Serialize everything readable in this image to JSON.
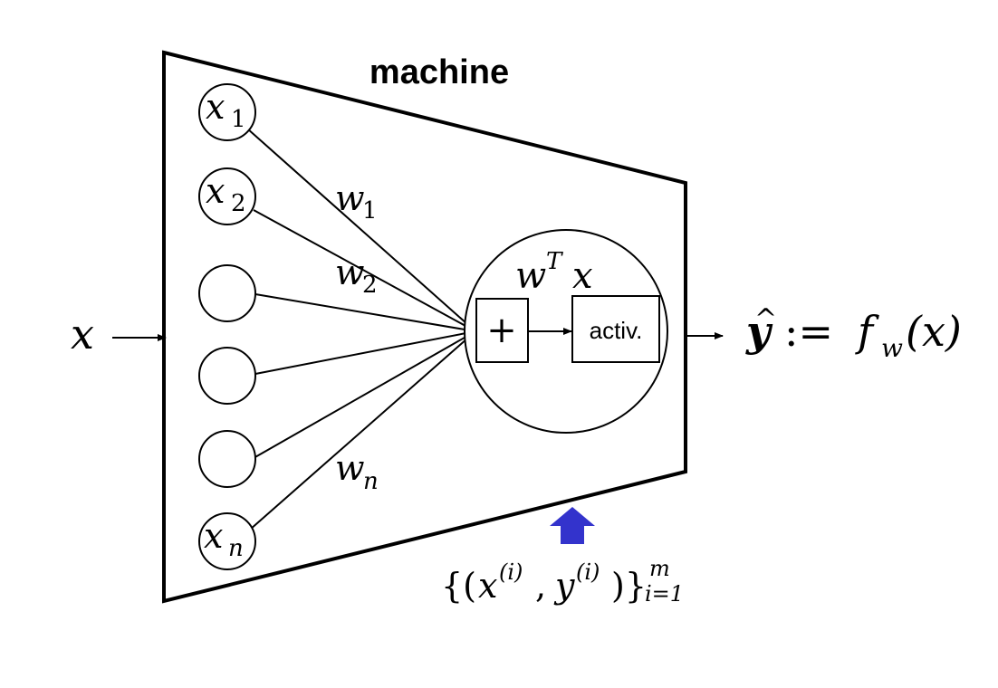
{
  "title": "machine",
  "input_label": "x",
  "inputs": [
    {
      "base": "x",
      "sub": "1"
    },
    {
      "base": "x",
      "sub": "2"
    },
    {
      "base": "",
      "sub": ""
    },
    {
      "base": "",
      "sub": ""
    },
    {
      "base": "",
      "sub": ""
    },
    {
      "base": "x",
      "sub": "n"
    }
  ],
  "weights": [
    {
      "base": "w",
      "sub": "1"
    },
    {
      "base": "w",
      "sub": "2"
    },
    {
      "base": "w",
      "sub": "n"
    }
  ],
  "neuron": {
    "label_base": "w",
    "label_sup": "T",
    "label_tail": "x",
    "sum_symbol": "+",
    "activation_label": "activ."
  },
  "output": {
    "yhat": "y",
    "hat": "^",
    "assign": ":=",
    "f": "f",
    "f_sub": "w",
    "arg": "(x)"
  },
  "training_data": {
    "open": "{(",
    "x": "x",
    "x_sup": "(i)",
    "comma": ", ",
    "y": "y",
    "y_sup": "(i)",
    "close": ")}",
    "sup": "m",
    "sub": "i=1"
  },
  "colors": {
    "stroke": "#000000",
    "arrow_blue": "#3333cc"
  }
}
